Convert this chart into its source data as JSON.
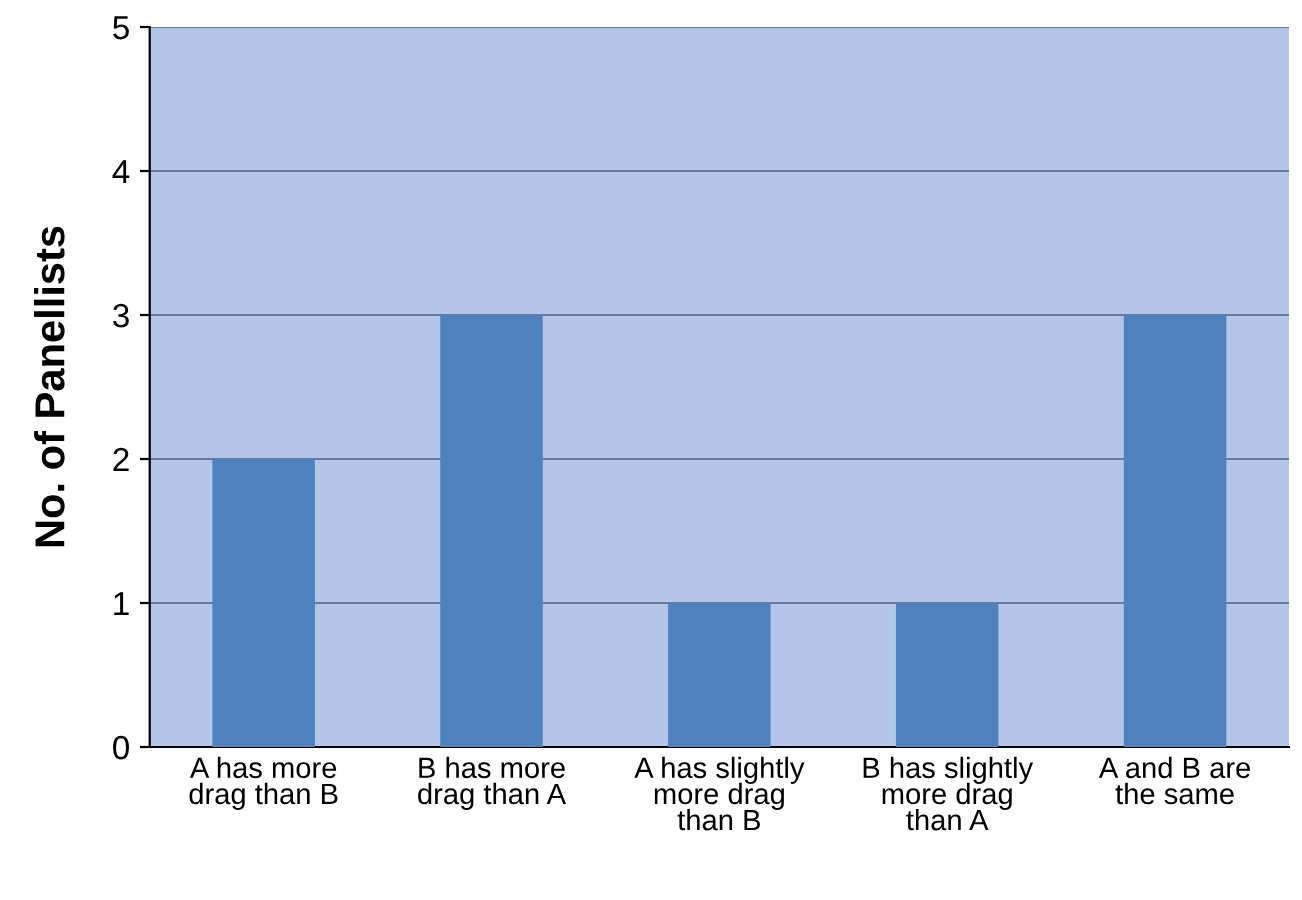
{
  "chart_data": {
    "type": "bar",
    "ylabel": "No. of Panellists",
    "categories": [
      "A has more\ndrag than B",
      "B has more\ndrag than A",
      "A has slightly\nmore drag\nthan B",
      "B has slightly\nmore drag\nthan A",
      "A and B are\nthe same"
    ],
    "values": [
      2,
      3,
      1,
      1,
      3
    ],
    "color": "#4f81bd",
    "ylim": [
      0,
      5
    ],
    "yticks": [
      0,
      1,
      2,
      3,
      4,
      5
    ],
    "grid": "y",
    "legend": false
  }
}
